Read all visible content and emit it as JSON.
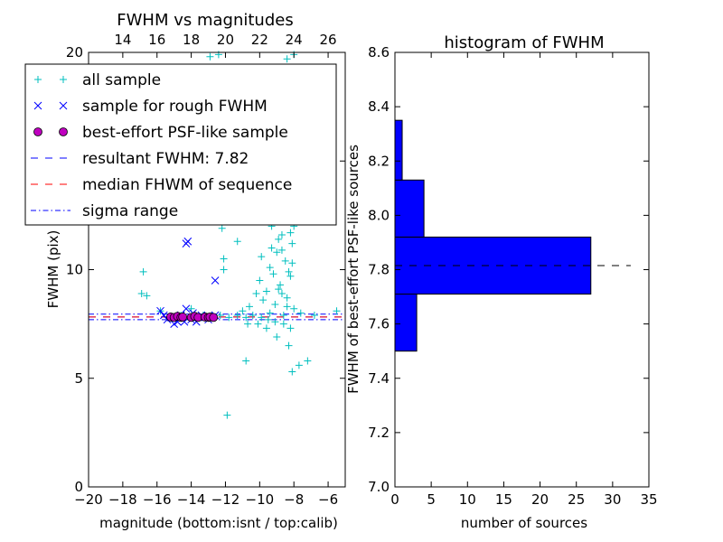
{
  "chart_data": [
    {
      "type": "scatter",
      "title": "FWHM vs magnitudes",
      "xlabel": "magnitude (bottom:isnt / top:calib)",
      "ylabel": "FWHM (pix)",
      "xlim": [
        -20,
        -5
      ],
      "ylim": [
        0,
        20
      ],
      "xticks": [
        -20,
        -18,
        -16,
        -14,
        -12,
        -10,
        -8,
        -6
      ],
      "xtick_labels": [
        "−20",
        "−18",
        "−16",
        "−14",
        "−12",
        "−10",
        "−8",
        "−6"
      ],
      "yticks": [
        0,
        5,
        10,
        15,
        20
      ],
      "ytick_labels": [
        "0",
        "5",
        "10",
        "15",
        "20"
      ],
      "top_axis": {
        "xlim": [
          12,
          27
        ],
        "ticks": [
          14,
          16,
          18,
          20,
          22,
          24,
          26
        ],
        "labels": [
          "14",
          "16",
          "18",
          "20",
          "22",
          "24",
          "26"
        ]
      },
      "legend": {
        "placement": "upper-left",
        "entries": [
          {
            "label": "all sample",
            "marker": "plus",
            "color": "#00bfbf"
          },
          {
            "label": "sample for rough FWHM",
            "marker": "x",
            "color": "#0000ff"
          },
          {
            "label": "best-effort PSF-like sample",
            "marker": "circle",
            "color": "#bf00bf"
          },
          {
            "label": "resultant FWHM: 7.82",
            "line": "dashed",
            "color": "#0000ff"
          },
          {
            "label": "median FHWM of sequence",
            "line": "dashed",
            "color": "#ff0000"
          },
          {
            "label": "sigma range",
            "line": "dashdot",
            "color": "#0000ff"
          }
        ]
      },
      "series": [
        {
          "name": "all sample",
          "marker": "plus",
          "color": "#00bfbf",
          "points": [
            [
              -16.8,
              9.9
            ],
            [
              -16.9,
              8.9
            ],
            [
              -16.6,
              8.8
            ],
            [
              -15.8,
              8.1
            ],
            [
              -15.1,
              7.8
            ],
            [
              -14.6,
              7.9
            ],
            [
              -14.0,
              8.2
            ],
            [
              -13.3,
              7.9
            ],
            [
              -12.8,
              7.9
            ],
            [
              -12.3,
              7.9
            ],
            [
              -11.8,
              7.8
            ],
            [
              -11.3,
              7.9
            ],
            [
              -10.8,
              7.8
            ],
            [
              -10.4,
              7.9
            ],
            [
              -9.9,
              7.8
            ],
            [
              -9.5,
              7.7
            ],
            [
              -9.1,
              7.6
            ],
            [
              -8.6,
              7.5
            ],
            [
              -8.2,
              7.3
            ],
            [
              -7.6,
              8.0
            ],
            [
              -6.8,
              7.9
            ],
            [
              -5.5,
              8.1
            ],
            [
              -12.2,
              11.9
            ],
            [
              -11.3,
              11.3
            ],
            [
              -12.1,
              10.5
            ],
            [
              -12.1,
              10.0
            ],
            [
              -12.9,
              19.8
            ],
            [
              -12.4,
              19.9
            ],
            [
              -8.0,
              19.9
            ],
            [
              -8.4,
              19.7
            ],
            [
              -10.8,
              5.8
            ],
            [
              -11.9,
              3.3
            ],
            [
              -8.1,
              5.3
            ],
            [
              -7.7,
              5.6
            ],
            [
              -7.2,
              5.8
            ],
            [
              -8.3,
              6.5
            ],
            [
              -9.0,
              6.9
            ],
            [
              -9.6,
              7.3
            ],
            [
              -10.1,
              7.5
            ],
            [
              -10.7,
              7.5
            ],
            [
              -8.9,
              17.1
            ],
            [
              -8.5,
              16.8
            ],
            [
              -8.2,
              16.1
            ],
            [
              -9.2,
              15.7
            ],
            [
              -8.7,
              15.0
            ],
            [
              -8.0,
              14.6
            ],
            [
              -9.4,
              14.2
            ],
            [
              -8.6,
              13.6
            ],
            [
              -8.1,
              13.1
            ],
            [
              -9.0,
              12.7
            ],
            [
              -8.4,
              12.3
            ],
            [
              -9.3,
              12.0
            ],
            [
              -8.7,
              11.6
            ],
            [
              -8.1,
              11.2
            ],
            [
              -9.0,
              10.8
            ],
            [
              -8.5,
              10.4
            ],
            [
              -9.4,
              10.1
            ],
            [
              -8.2,
              9.7
            ],
            [
              -8.8,
              9.3
            ],
            [
              -9.6,
              9.0
            ],
            [
              -8.4,
              8.7
            ],
            [
              -9.1,
              8.4
            ],
            [
              -8.0,
              8.2
            ],
            [
              -8.6,
              7.9
            ],
            [
              -9.8,
              8.6
            ],
            [
              -10.2,
              8.9
            ],
            [
              -10.6,
              8.3
            ],
            [
              -11.0,
              8.1
            ],
            [
              -10.0,
              9.5
            ],
            [
              -9.9,
              10.6
            ],
            [
              -8.3,
              16.0
            ],
            [
              -8.9,
              15.2
            ],
            [
              -8.1,
              14.0
            ],
            [
              -8.6,
              12.8
            ],
            [
              -8.2,
              11.7
            ],
            [
              -8.7,
              10.9
            ],
            [
              -8.3,
              9.9
            ],
            [
              -8.9,
              9.1
            ],
            [
              -8.4,
              8.3
            ],
            [
              -9.3,
              11.0
            ],
            [
              -9.5,
              12.6
            ],
            [
              -9.1,
              13.8
            ],
            [
              -8.8,
              14.5
            ],
            [
              -8.5,
              13.3
            ],
            [
              -8.0,
              12.0
            ],
            [
              -8.9,
              11.4
            ],
            [
              -9.2,
              9.8
            ],
            [
              -8.1,
              10.3
            ],
            [
              -8.7,
              8.9
            ],
            [
              -9.4,
              8.0
            ]
          ]
        },
        {
          "name": "sample for rough FWHM",
          "marker": "x",
          "color": "#0000ff",
          "points": [
            [
              -14.3,
              11.2
            ],
            [
              -14.2,
              11.3
            ],
            [
              -12.6,
              9.5
            ],
            [
              -15.8,
              8.1
            ],
            [
              -15.6,
              7.9
            ],
            [
              -15.2,
              7.8
            ],
            [
              -15.0,
              7.5
            ],
            [
              -14.8,
              7.6
            ],
            [
              -14.6,
              7.9
            ],
            [
              -14.3,
              8.2
            ],
            [
              -14.0,
              7.7
            ],
            [
              -13.8,
              7.8
            ],
            [
              -13.7,
              7.6
            ],
            [
              -13.4,
              7.9
            ],
            [
              -13.2,
              7.8
            ],
            [
              -13.0,
              7.7
            ],
            [
              -12.8,
              7.8
            ],
            [
              -12.6,
              7.9
            ],
            [
              -15.4,
              7.7
            ],
            [
              -14.4,
              7.6
            ],
            [
              -13.9,
              8.0
            ]
          ]
        },
        {
          "name": "best-effort PSF-like sample",
          "marker": "circle",
          "color": "#bf00bf",
          "points": [
            [
              -15.2,
              7.82
            ],
            [
              -15.0,
              7.8
            ],
            [
              -14.8,
              7.85
            ],
            [
              -14.6,
              7.8
            ],
            [
              -14.5,
              7.82
            ],
            [
              -14.0,
              7.8
            ],
            [
              -13.8,
              7.85
            ],
            [
              -13.6,
              7.8
            ],
            [
              -13.2,
              7.82
            ],
            [
              -13.0,
              7.8
            ],
            [
              -12.9,
              7.82
            ],
            [
              -12.7,
              7.8
            ]
          ]
        }
      ],
      "reference_lines": [
        {
          "name": "resultant FWHM: 7.82",
          "y": 7.82,
          "style": "dashed",
          "color": "#0000ff"
        },
        {
          "name": "median FHWM of sequence",
          "y": 7.82,
          "style": "dashed",
          "color": "#ff0000"
        },
        {
          "name": "sigma range",
          "y": 7.95,
          "style": "dashdot",
          "color": "#0000ff"
        },
        {
          "name": "sigma range",
          "y": 7.7,
          "style": "dashdot",
          "color": "#0000ff"
        }
      ]
    },
    {
      "type": "bar",
      "orientation": "horizontal",
      "title": "histogram of FWHM",
      "xlabel": "number of sources",
      "ylabel": "FWHM of best-effort PSF-like sources",
      "xlim": [
        0,
        35
      ],
      "ylim": [
        7.0,
        8.6
      ],
      "xticks": [
        0,
        5,
        10,
        15,
        20,
        25,
        30,
        35
      ],
      "xtick_labels": [
        "0",
        "5",
        "10",
        "15",
        "20",
        "25",
        "30",
        "35"
      ],
      "yticks": [
        7.0,
        7.2,
        7.4,
        7.6,
        7.8,
        8.0,
        8.2,
        8.4,
        8.6
      ],
      "ytick_labels": [
        "7.0",
        "7.2",
        "7.4",
        "7.6",
        "7.8",
        "8.0",
        "8.2",
        "8.4",
        "8.6"
      ],
      "bar_color": "#0000ff",
      "bins": [
        {
          "from": 7.5,
          "to": 7.71,
          "count": 3
        },
        {
          "from": 7.71,
          "to": 7.92,
          "count": 27
        },
        {
          "from": 7.92,
          "to": 8.13,
          "count": 4
        },
        {
          "from": 8.13,
          "to": 8.35,
          "count": 1
        }
      ],
      "reference_lines": [
        {
          "y": 7.815,
          "style": "dashed",
          "color": "#000000"
        }
      ]
    }
  ]
}
